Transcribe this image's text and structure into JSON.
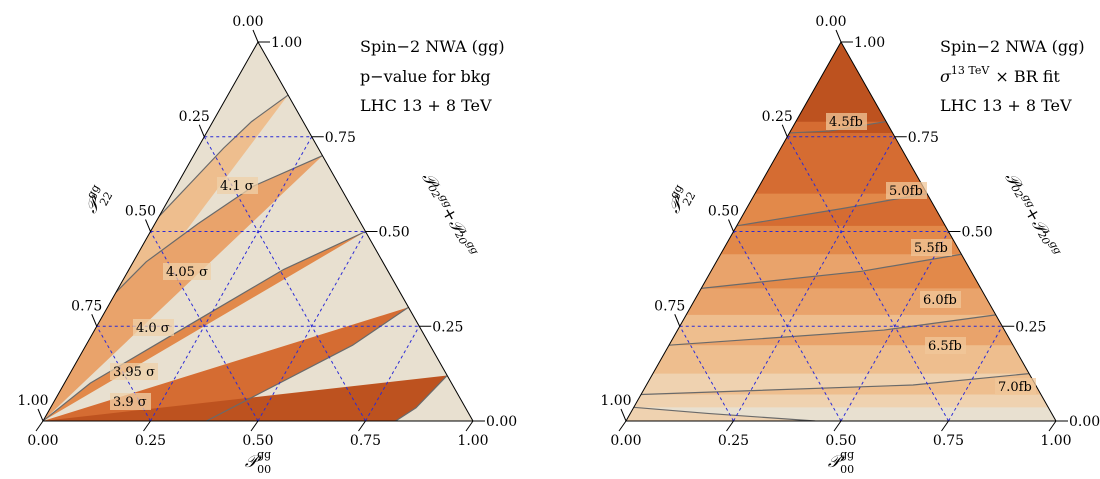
{
  "chart_data": [
    {
      "type": "ternary-contour",
      "info_lines": [
        "Spin−2 NWA (gg)",
        "p−value for bkg",
        "LHC 13 + 8 TeV"
      ],
      "bottom_axis": {
        "symbol": "𝒫",
        "sup": "gg",
        "sub": "00",
        "ticks": [
          "0.00",
          "0.25",
          "0.50",
          "0.75",
          "1.00"
        ]
      },
      "left_axis": {
        "symbol": "𝒫",
        "sup": "gg",
        "sub": "22",
        "ticks": [
          "1.00",
          "0.75",
          "0.50",
          "0.25",
          "0.00"
        ]
      },
      "right_axis": {
        "label": "𝒫₀₂ᵍᵍ+𝒫₂₀ᵍᵍ",
        "ticks": [
          "1.00",
          "0.75",
          "0.50",
          "0.25",
          "0.00"
        ]
      },
      "palette": [
        "#bd521f",
        "#d56c32",
        "#e2894a",
        "#e9a36b",
        "#eebe8e",
        "#efd2b0",
        "#e8e0d0"
      ],
      "contours": [
        {
          "label": "3.9 σ",
          "p22": [
            0.12,
            0.035,
            0.0
          ],
          "p00": [
            0.88,
            0.85,
            0.82
          ]
        },
        {
          "label": "3.95 σ",
          "p22": [
            0.3,
            0.2,
            0.1,
            0.0
          ],
          "p00": [
            0.7,
            0.62,
            0.5,
            0.38
          ]
        },
        {
          "label": "4.0 σ",
          "p22": [
            0.5,
            0.4,
            0.3,
            0.2,
            0.1,
            0.0
          ],
          "p00": [
            0.5,
            0.36,
            0.26,
            0.16,
            0.06,
            0.0
          ]
        },
        {
          "label": "4.05 σ",
          "p22": [
            0.7,
            0.62,
            0.52,
            0.42,
            0.34
          ],
          "p00": [
            0.3,
            0.18,
            0.1,
            0.03,
            0.0
          ]
        },
        {
          "label": "4.1 σ",
          "p22": [
            0.86,
            0.79,
            0.72,
            0.63,
            0.54
          ],
          "p00": [
            0.14,
            0.09,
            0.06,
            0.03,
            0.0
          ]
        }
      ]
    },
    {
      "type": "ternary-contour",
      "info_lines": [
        "Spin−2 NWA (gg)",
        "σ",
        "13 TeV",
        "× BR fit",
        "LHC 13 + 8 TeV"
      ],
      "bottom_axis": {
        "symbol": "𝒫",
        "sup": "gg",
        "sub": "00",
        "ticks": [
          "0.00",
          "0.25",
          "0.50",
          "0.75",
          "1.00"
        ]
      },
      "left_axis": {
        "symbol": "𝒫",
        "sup": "gg",
        "sub": "22",
        "ticks": [
          "1.00",
          "0.75",
          "0.50",
          "0.25",
          "0.00"
        ]
      },
      "right_axis": {
        "label": "𝒫₀₂ᵍᵍ+𝒫₂₀ᵍᵍ",
        "ticks": [
          "1.00",
          "0.75",
          "0.50",
          "0.25",
          "0.00"
        ]
      },
      "palette": [
        "#bd521f",
        "#d56c32",
        "#e2894a",
        "#e9a36b",
        "#eebe8e",
        "#efd2b0",
        "#e8e0d0"
      ],
      "contours": [
        {
          "label": "4.5fb",
          "p22": [
            0.79,
            0.765,
            0.76
          ],
          "p00": [
            0.21,
            0.09,
            0.0
          ]
        },
        {
          "label": "5.0fb",
          "p22": [
            0.6,
            0.56,
            0.515
          ],
          "p00": [
            0.4,
            0.22,
            0.0
          ]
        },
        {
          "label": "5.5fb",
          "p22": [
            0.44,
            0.395,
            0.35
          ],
          "p00": [
            0.56,
            0.35,
            0.0
          ]
        },
        {
          "label": "6.0fb",
          "p22": [
            0.28,
            0.24,
            0.2
          ],
          "p00": [
            0.72,
            0.48,
            0.0
          ]
        },
        {
          "label": "6.5fb",
          "p22": [
            0.125,
            0.095,
            0.07
          ],
          "p00": [
            0.875,
            0.62,
            0.0
          ]
        },
        {
          "label": "7.0fb",
          "p22": [
            0.0,
            0.02,
            0.036
          ],
          "p00": [
            0.44,
            0.18,
            0.0
          ]
        }
      ]
    }
  ]
}
